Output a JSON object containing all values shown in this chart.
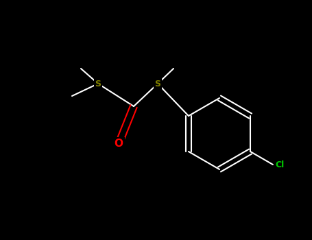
{
  "bg_color": "#000000",
  "bond_color": "#ffffff",
  "S_color": "#808000",
  "O_color": "#ff0000",
  "Cl_color": "#00cc00",
  "S_label": "S",
  "O_label": "O",
  "Cl_label": "Cl",
  "font_size_S": 9,
  "font_size_O": 11,
  "font_size_Cl": 9,
  "line_width": 1.5,
  "figwidth": 4.55,
  "figheight": 3.5,
  "dpi": 100
}
